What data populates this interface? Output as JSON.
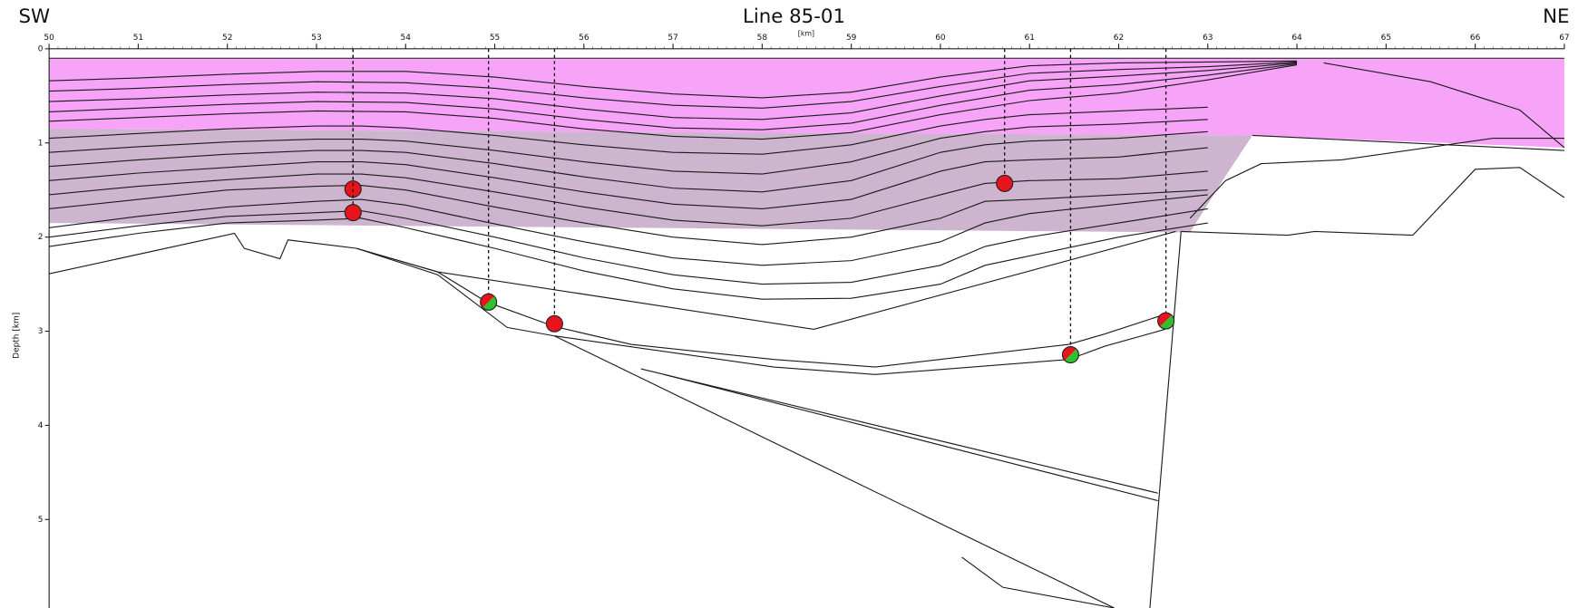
{
  "chart_data": {
    "type": "section",
    "title": "Line 85-01",
    "left_label": "SW",
    "right_label": "NE",
    "x_label": "[km]",
    "y_label": "Depth [km]",
    "xlim": [
      50,
      67
    ],
    "ylim": [
      0,
      5.94
    ],
    "y_inverted": true,
    "xticks": [
      50,
      51,
      52,
      53,
      54,
      55,
      56,
      57,
      58,
      59,
      60,
      61,
      62,
      63,
      64,
      65,
      66,
      67
    ],
    "yticks": [
      0,
      1,
      2,
      3,
      4,
      5
    ],
    "line_color": "#1a1a1a",
    "zones": [
      {
        "color": "#f7a3f7",
        "x": [
          50,
          67,
          67,
          63.5,
          50
        ],
        "y": [
          0.1,
          0.1,
          1.05,
          0.92,
          0.85
        ]
      },
      {
        "color": "#cdb4cf",
        "x": [
          50,
          63.5,
          63.2,
          62.8,
          50
        ],
        "y": [
          0.85,
          0.92,
          1.35,
          1.95,
          1.85
        ]
      }
    ],
    "horizons": [
      {
        "x": [
          50,
          67
        ],
        "y": [
          0.1,
          0.1
        ]
      },
      {
        "x": [
          50,
          51,
          52,
          53,
          54,
          55,
          56,
          57,
          58,
          59,
          60,
          61,
          62,
          63,
          64
        ],
        "y": [
          0.34,
          0.31,
          0.27,
          0.24,
          0.24,
          0.3,
          0.4,
          0.48,
          0.52,
          0.46,
          0.3,
          0.18,
          0.15,
          0.14,
          0.13
        ]
      },
      {
        "x": [
          50,
          51,
          52,
          53,
          54,
          55,
          56,
          57,
          58,
          59,
          60,
          61,
          62,
          63,
          64
        ],
        "y": [
          0.45,
          0.42,
          0.38,
          0.35,
          0.36,
          0.42,
          0.52,
          0.6,
          0.63,
          0.56,
          0.4,
          0.26,
          0.22,
          0.19,
          0.14
        ]
      },
      {
        "x": [
          50,
          51,
          52,
          53,
          54,
          55,
          56,
          57,
          58,
          59,
          60,
          61,
          62,
          63,
          64
        ],
        "y": [
          0.56,
          0.53,
          0.49,
          0.46,
          0.47,
          0.53,
          0.64,
          0.73,
          0.75,
          0.68,
          0.5,
          0.34,
          0.29,
          0.23,
          0.15
        ]
      },
      {
        "x": [
          50,
          51,
          52,
          53,
          54,
          55,
          56,
          57,
          58,
          59,
          60,
          61,
          62,
          63,
          64
        ],
        "y": [
          0.67,
          0.63,
          0.59,
          0.56,
          0.57,
          0.64,
          0.75,
          0.84,
          0.86,
          0.79,
          0.6,
          0.44,
          0.38,
          0.28,
          0.16
        ]
      },
      {
        "x": [
          50,
          51,
          52,
          53,
          54,
          55,
          56,
          57,
          58,
          59,
          60,
          61,
          62,
          63,
          64
        ],
        "y": [
          0.77,
          0.73,
          0.69,
          0.66,
          0.67,
          0.74,
          0.85,
          0.93,
          0.96,
          0.89,
          0.7,
          0.55,
          0.47,
          0.33,
          0.17
        ]
      },
      {
        "x": [
          50,
          51,
          52,
          53,
          53.5,
          54,
          55,
          56,
          57,
          58,
          59,
          60,
          60.5,
          61,
          62,
          63
        ],
        "y": [
          0.95,
          0.9,
          0.85,
          0.82,
          0.82,
          0.84,
          0.92,
          1.02,
          1.1,
          1.12,
          1.02,
          0.82,
          0.75,
          0.7,
          0.66,
          0.62
        ]
      },
      {
        "x": [
          50,
          51,
          52,
          53,
          53.5,
          54,
          55,
          56,
          57,
          58,
          59,
          60,
          60.5,
          61,
          62,
          63
        ],
        "y": [
          1.1,
          1.04,
          0.99,
          0.96,
          0.96,
          0.98,
          1.08,
          1.2,
          1.3,
          1.33,
          1.2,
          0.95,
          0.88,
          0.83,
          0.8,
          0.75
        ]
      },
      {
        "x": [
          50,
          51,
          52,
          53,
          53.5,
          54,
          55,
          56,
          57,
          58,
          59,
          60,
          60.5,
          61,
          62,
          63
        ],
        "y": [
          1.25,
          1.18,
          1.12,
          1.08,
          1.08,
          1.1,
          1.22,
          1.36,
          1.48,
          1.52,
          1.4,
          1.1,
          1.02,
          0.98,
          0.95,
          0.88
        ]
      },
      {
        "x": [
          50,
          51,
          52,
          53,
          53.5,
          54,
          55,
          56,
          57,
          58,
          59,
          60,
          60.5,
          61,
          62,
          63
        ],
        "y": [
          1.4,
          1.32,
          1.26,
          1.2,
          1.2,
          1.23,
          1.37,
          1.52,
          1.65,
          1.7,
          1.6,
          1.3,
          1.2,
          1.18,
          1.15,
          1.05
        ]
      },
      {
        "x": [
          50,
          51,
          52,
          53,
          53.5,
          54,
          55,
          56,
          57,
          58,
          59,
          60,
          60.5,
          61,
          62,
          63
        ],
        "y": [
          1.55,
          1.46,
          1.39,
          1.33,
          1.33,
          1.37,
          1.52,
          1.68,
          1.82,
          1.88,
          1.8,
          1.55,
          1.43,
          1.4,
          1.38,
          1.3
        ]
      },
      {
        "x": [
          50,
          51,
          52,
          53,
          53.5,
          54,
          55,
          56,
          57,
          58,
          59,
          60,
          60.5,
          61,
          62,
          63
        ],
        "y": [
          1.7,
          1.6,
          1.5,
          1.46,
          1.45,
          1.5,
          1.68,
          1.85,
          2.0,
          2.08,
          2.0,
          1.8,
          1.62,
          1.6,
          1.55,
          1.5
        ]
      },
      {
        "x": [
          50,
          51,
          52,
          53,
          53.5,
          54,
          55,
          56,
          57,
          58,
          59,
          60,
          60.5,
          61,
          62,
          63
        ],
        "y": [
          1.9,
          1.78,
          1.68,
          1.62,
          1.6,
          1.66,
          1.86,
          2.05,
          2.22,
          2.3,
          2.25,
          2.05,
          1.85,
          1.75,
          1.65,
          1.55
        ]
      },
      {
        "x": [
          50,
          51,
          52,
          53,
          53.5,
          54,
          55,
          56,
          57,
          58,
          59,
          60,
          60.5,
          61,
          62,
          63
        ],
        "y": [
          2.0,
          1.88,
          1.78,
          1.74,
          1.72,
          1.8,
          2.0,
          2.22,
          2.4,
          2.5,
          2.48,
          2.3,
          2.1,
          2.0,
          1.85,
          1.7
        ]
      },
      {
        "x": [
          50,
          51,
          52,
          53,
          53.5,
          54,
          55,
          56,
          57,
          58,
          59,
          60,
          60.5,
          61,
          62,
          63
        ],
        "y": [
          2.1,
          1.96,
          1.85,
          1.82,
          1.8,
          1.9,
          2.12,
          2.36,
          2.55,
          2.66,
          2.65,
          2.5,
          2.3,
          2.2,
          2.0,
          1.85
        ]
      },
      {
        "x": [
          50,
          52.08,
          52.19,
          52.59,
          52.68,
          53.45,
          54.36,
          54.91,
          55.67,
          56.53,
          58.13,
          59.27,
          61.44,
          61.84,
          62.52
        ],
        "y": [
          2.39,
          1.96,
          2.12,
          2.23,
          2.03,
          2.12,
          2.37,
          2.69,
          2.95,
          3.14,
          3.3,
          3.38,
          3.14,
          3.03,
          2.82
        ]
      },
      {
        "x": [
          53.45,
          54.36,
          55.14,
          55.67,
          58.13,
          59.27,
          61.44,
          61.84,
          62.52
        ],
        "y": [
          2.12,
          2.4,
          2.96,
          3.05,
          3.38,
          3.46,
          3.3,
          3.16,
          2.98
        ]
      },
      {
        "x": [
          53.45,
          54.36,
          58.58,
          62.64
        ],
        "y": [
          2.12,
          2.37,
          2.98,
          1.94
        ]
      },
      {
        "x": [
          62.7,
          62.35
        ],
        "y": [
          1.94,
          5.94
        ]
      },
      {
        "x": [
          55.67,
          61.95
        ],
        "y": [
          3.05,
          5.94
        ]
      },
      {
        "x": [
          56.64,
          62.44
        ],
        "y": [
          3.4,
          4.72
        ]
      },
      {
        "x": [
          56.9,
          62.44
        ],
        "y": [
          3.46,
          4.8
        ]
      },
      {
        "x": [
          60.24,
          60.7,
          61.95
        ],
        "y": [
          5.4,
          5.72,
          5.94
        ]
      },
      {
        "x": [
          62.7,
          63.9,
          64.2,
          65.3,
          66.0,
          66.5,
          67
        ],
        "y": [
          1.94,
          1.98,
          1.94,
          1.98,
          1.28,
          1.26,
          1.58
        ]
      },
      {
        "x": [
          62.8,
          63.2,
          63.6,
          64.5,
          66.2,
          67
        ],
        "y": [
          1.8,
          1.4,
          1.22,
          1.18,
          0.95,
          0.95
        ]
      },
      {
        "x": [
          63.5,
          67
        ],
        "y": [
          0.92,
          1.08
        ]
      },
      {
        "x": [
          64.3,
          65.5,
          66.5,
          67
        ],
        "y": [
          0.15,
          0.35,
          0.65,
          1.05
        ]
      }
    ],
    "wells": [
      {
        "x": 53.41,
        "y": 1.49,
        "colors": [
          "#e8141b"
        ]
      },
      {
        "x": 53.41,
        "y": 1.74,
        "colors": [
          "#e8141b"
        ]
      },
      {
        "x": 54.93,
        "y": 2.69,
        "colors": [
          "#e8141b",
          "#2ec02e"
        ]
      },
      {
        "x": 55.67,
        "y": 2.92,
        "colors": [
          "#e8141b"
        ]
      },
      {
        "x": 60.72,
        "y": 1.43,
        "colors": [
          "#e8141b"
        ]
      },
      {
        "x": 61.46,
        "y": 3.25,
        "colors": [
          "#e8141b",
          "#2ec02e"
        ]
      },
      {
        "x": 62.53,
        "y": 2.89,
        "colors": [
          "#e8141b",
          "#2ec02e"
        ]
      }
    ]
  }
}
